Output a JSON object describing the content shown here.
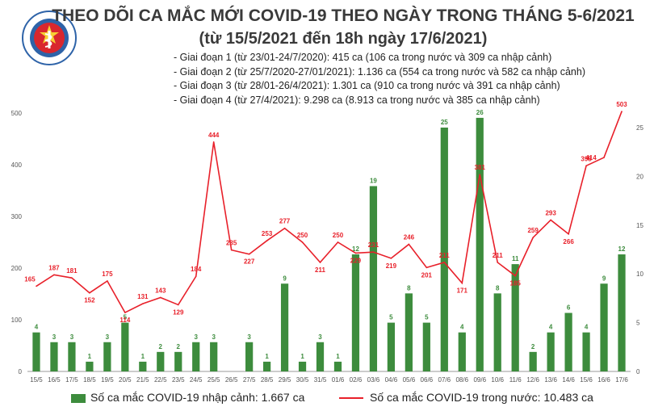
{
  "header": {
    "logo_text": "BỘ Y TẾ",
    "logo_subtext": "MINISTRY OF HEALTH",
    "title": "THEO DÕI CA MẮC MỚI COVID-19 THEO NGÀY TRONG THÁNG 5-6/2021",
    "subtitle": "(từ 15/5/2021 đến 18h ngày 17/6/2021)"
  },
  "phases": [
    "- Giai đoạn 1 (từ 23/01-24/7/2020): 415 ca (106 ca trong nước và 309 ca nhập cảnh)",
    "- Giai đoạn 2 (từ 25/7/2020-27/01/2021): 1.136 ca (554 ca trong nước và 582 ca nhập cảnh)",
    "- Giai đoạn 3 (từ 28/01-26/4/2021): 1.301 ca (910 ca trong nước và 391 ca nhập cảnh)",
    "- Giai đoạn 4 (từ 27/4/2021): 9.298 ca (8.913 ca trong nước và 385 ca nhập cảnh)"
  ],
  "legend": {
    "bar_label": "Số ca mắc COVID-19 nhập cảnh: 1.667 ca",
    "line_label": "Số ca mắc COVID-19 trong nước: 10.483 ca"
  },
  "colors": {
    "bar": "#3d8c3d",
    "line": "#e8202a",
    "title": "#3a3a3a"
  },
  "chart_data": {
    "type": "bar",
    "categories": [
      "15/5",
      "16/5",
      "17/5",
      "18/5",
      "19/5",
      "20/5",
      "21/5",
      "22/5",
      "23/5",
      "24/5",
      "25/5",
      "26/5",
      "27/5",
      "28/5",
      "29/5",
      "30/5",
      "31/5",
      "01/6",
      "02/6",
      "03/6",
      "04/6",
      "05/6",
      "06/6",
      "07/6",
      "08/6",
      "09/6",
      "10/6",
      "11/6",
      "12/6",
      "13/6",
      "14/6",
      "15/6",
      "16/6",
      "17/6"
    ],
    "series": [
      {
        "values": [
          4,
          3,
          3,
          1,
          3,
          5,
          1,
          2,
          2,
          3,
          3,
          0,
          3,
          1,
          9,
          1,
          3,
          1,
          12,
          19,
          5,
          8,
          5,
          25,
          4,
          26,
          8,
          11,
          2,
          4,
          6,
          4,
          9,
          12
        ]
      },
      {
        "values": [
          165,
          187,
          181,
          152,
          175,
          114,
          131,
          143,
          129,
          184,
          444,
          235,
          227,
          253,
          277,
          250,
          211,
          250,
          229,
          231,
          219,
          246,
          201,
          211,
          171,
          381,
          211,
          185,
          259,
          293,
          266,
          398,
          414,
          503
        ]
      }
    ],
    "bar_labels": [
      "4",
      "3",
      "3",
      "1",
      "3",
      "5",
      "1",
      "2",
      "2",
      "3",
      "3",
      "",
      "3",
      "1",
      "9",
      "1",
      "3",
      "1",
      "12",
      "19",
      "5",
      "8",
      "5",
      "25",
      "4",
      "26",
      "8",
      "11",
      "2",
      "4",
      "6",
      "4",
      "9",
      "12"
    ],
    "line_labels": [
      "165",
      "187",
      "181",
      "152",
      "175",
      "114",
      "131",
      "143",
      "129",
      "184",
      "444",
      "235",
      "227",
      "253",
      "277",
      "250",
      "211",
      "250",
      "229",
      "231",
      "219",
      "246",
      "201",
      "211",
      "171",
      "381",
      "211",
      "185",
      "259",
      "293",
      "266",
      "398",
      "",
      "503"
    ],
    "extra_line_label": "414",
    "y_left": {
      "min": 0,
      "max": 500,
      "ticks": [
        "0",
        "100",
        "200",
        "300",
        "400",
        "500"
      ]
    },
    "y_right": {
      "min": 0,
      "max": 25,
      "ticks": [
        "0",
        "5",
        "10",
        "15",
        "20",
        "25"
      ]
    },
    "grid": false
  }
}
